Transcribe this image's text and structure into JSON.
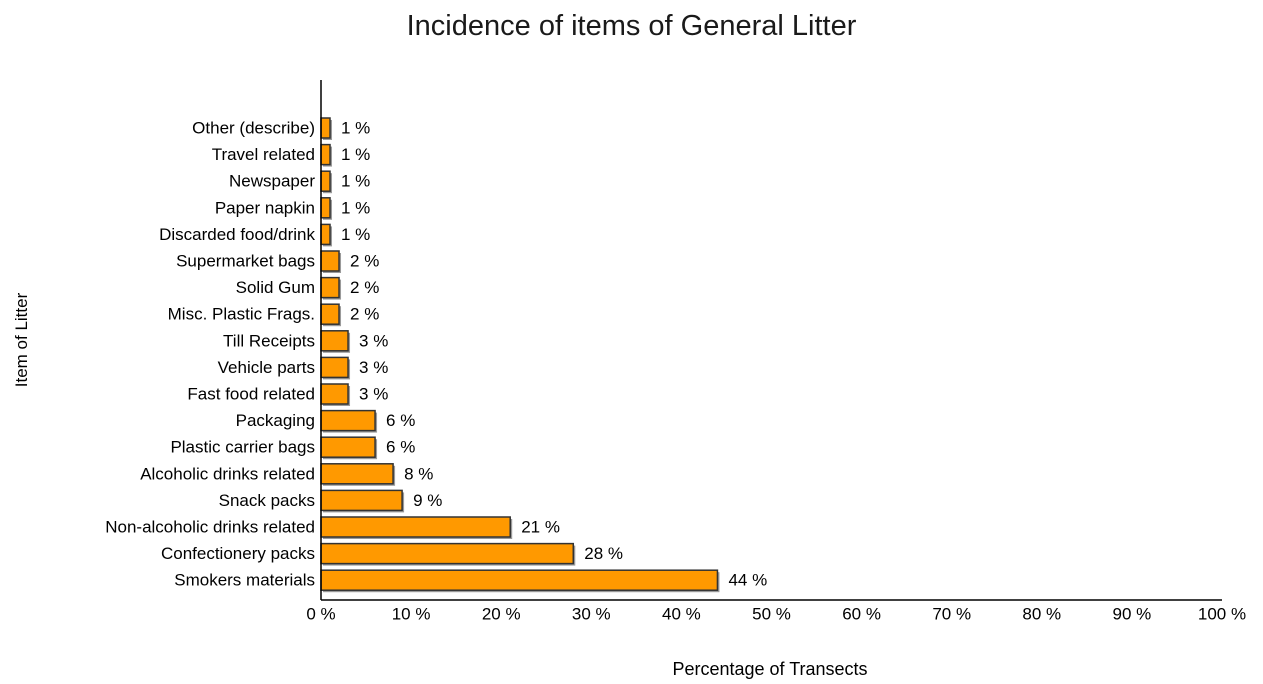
{
  "chart_data": {
    "type": "bar",
    "orientation": "horizontal",
    "title": "Incidence of items of General Litter",
    "xlabel": "Percentage of Transects",
    "ylabel": "Item of Litter",
    "categories": [
      "Other (describe)",
      "Travel related",
      "Newspaper",
      "Paper napkin",
      "Discarded food/drink",
      "Supermarket bags",
      "Solid Gum",
      "Misc. Plastic Frags.",
      "Till Receipts",
      "Vehicle parts",
      "Fast food related",
      "Packaging",
      "Plastic carrier bags",
      "Alcoholic drinks related",
      "Snack packs",
      "Non-alcoholic drinks related",
      "Confectionery packs",
      "Smokers materials"
    ],
    "values": [
      1,
      1,
      1,
      1,
      1,
      2,
      2,
      2,
      3,
      3,
      3,
      6,
      6,
      8,
      9,
      21,
      28,
      44
    ],
    "data_labels": [
      "1 %",
      "1 %",
      "1 %",
      "1 %",
      "1 %",
      "2 %",
      "2 %",
      "2 %",
      "3 %",
      "3 %",
      "3 %",
      "6 %",
      "6 %",
      "8 %",
      "9 %",
      "21 %",
      "28 %",
      "44 %"
    ],
    "xlim": [
      0,
      100
    ],
    "x_ticks": [
      "0 %",
      "10 %",
      "20 %",
      "30 %",
      "40 %",
      "50 %",
      "60 %",
      "70 %",
      "80 %",
      "90 %",
      "100 %"
    ],
    "bar_color": "#ff9900",
    "bar_edge_color": "#333333",
    "grid": false,
    "legend": "none"
  }
}
